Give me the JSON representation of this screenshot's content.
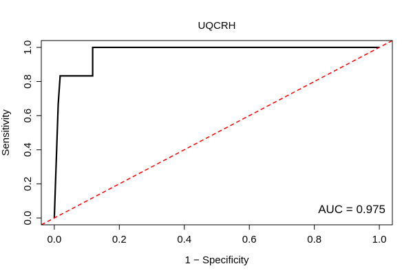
{
  "chart_data": {
    "type": "line",
    "title": "UQCRH",
    "xlabel": "1 − Specificity",
    "ylabel": "Sensitivity",
    "xlim": [
      -0.04,
      1.04
    ],
    "ylim": [
      -0.04,
      1.04
    ],
    "x_ticks": [
      0.0,
      0.2,
      0.4,
      0.6,
      0.8,
      1.0
    ],
    "x_tick_labels": [
      "0.0",
      "0.2",
      "0.4",
      "0.6",
      "0.8",
      "1.0"
    ],
    "y_ticks": [
      0.0,
      0.2,
      0.4,
      0.6,
      0.8,
      1.0
    ],
    "y_tick_labels": [
      "0.0",
      "0.2",
      "0.4",
      "0.6",
      "0.8",
      "1.0"
    ],
    "series": [
      {
        "color": "#000000",
        "style": "solid",
        "x": [
          0.0,
          0.012,
          0.012,
          0.018,
          0.018,
          0.118,
          0.118,
          1.0
        ],
        "y": [
          0.0,
          0.667,
          0.667,
          0.833,
          0.833,
          0.833,
          1.0,
          1.0
        ]
      },
      {
        "color": "#ff0000",
        "style": "dashed",
        "x": [
          -0.04,
          1.04
        ],
        "y": [
          -0.04,
          1.04
        ]
      }
    ],
    "annotation": "AUC = 0.975",
    "grid": false,
    "legend": "none"
  }
}
